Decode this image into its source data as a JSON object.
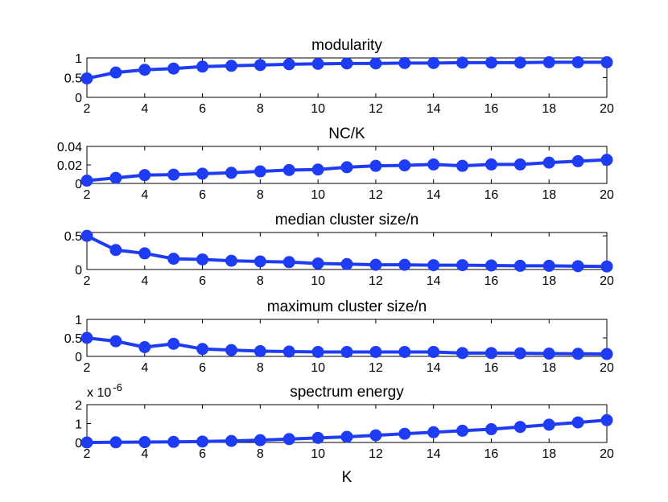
{
  "colors": {
    "series": "#1f3cf5",
    "axes": "#000000",
    "background": "#ffffff"
  },
  "chart_data": [
    {
      "type": "line",
      "title": "modularity",
      "xlabel": "",
      "ylabel": "",
      "x": [
        2,
        3,
        4,
        5,
        6,
        7,
        8,
        9,
        10,
        11,
        12,
        13,
        14,
        15,
        16,
        17,
        18,
        19,
        20
      ],
      "values": [
        0.48,
        0.63,
        0.7,
        0.73,
        0.78,
        0.8,
        0.82,
        0.84,
        0.85,
        0.86,
        0.86,
        0.87,
        0.87,
        0.88,
        0.88,
        0.88,
        0.89,
        0.89,
        0.89
      ],
      "xlim": [
        2,
        20
      ],
      "ylim": [
        0,
        1
      ],
      "xticks": [
        "2",
        "4",
        "6",
        "8",
        "10",
        "12",
        "14",
        "16",
        "18",
        "20"
      ],
      "yticks": [
        "0",
        "0.5",
        "1"
      ],
      "grid": false
    },
    {
      "type": "line",
      "title": "NC/K",
      "xlabel": "",
      "ylabel": "",
      "x": [
        2,
        3,
        4,
        5,
        6,
        7,
        8,
        9,
        10,
        11,
        12,
        13,
        14,
        15,
        16,
        17,
        18,
        19,
        20
      ],
      "values": [
        0.003,
        0.006,
        0.009,
        0.0095,
        0.0105,
        0.0115,
        0.013,
        0.0145,
        0.015,
        0.0175,
        0.019,
        0.0195,
        0.0205,
        0.019,
        0.0205,
        0.0205,
        0.0225,
        0.024,
        0.0255
      ],
      "xlim": [
        2,
        20
      ],
      "ylim": [
        0,
        0.04
      ],
      "xticks": [
        "2",
        "4",
        "6",
        "8",
        "10",
        "12",
        "14",
        "16",
        "18",
        "20"
      ],
      "yticks": [
        "0",
        "0.02",
        "0.04"
      ],
      "grid": false
    },
    {
      "type": "line",
      "title": "median cluster size/n",
      "xlabel": "",
      "ylabel": "",
      "x": [
        2,
        3,
        4,
        5,
        6,
        7,
        8,
        9,
        10,
        11,
        12,
        13,
        14,
        15,
        16,
        17,
        18,
        19,
        20
      ],
      "values": [
        0.5,
        0.29,
        0.24,
        0.16,
        0.15,
        0.13,
        0.12,
        0.11,
        0.09,
        0.08,
        0.07,
        0.07,
        0.065,
        0.065,
        0.06,
        0.055,
        0.055,
        0.05,
        0.045
      ],
      "xlim": [
        2,
        20
      ],
      "ylim": [
        0,
        0.55
      ],
      "xticks": [
        "2",
        "4",
        "6",
        "8",
        "10",
        "12",
        "14",
        "16",
        "18",
        "20"
      ],
      "yticks": [
        "0",
        "0.5"
      ],
      "grid": false
    },
    {
      "type": "line",
      "title": "maximum cluster size/n",
      "xlabel": "",
      "ylabel": "",
      "x": [
        2,
        3,
        4,
        5,
        6,
        7,
        8,
        9,
        10,
        11,
        12,
        13,
        14,
        15,
        16,
        17,
        18,
        19,
        20
      ],
      "values": [
        0.5,
        0.41,
        0.25,
        0.34,
        0.2,
        0.17,
        0.14,
        0.13,
        0.12,
        0.12,
        0.12,
        0.12,
        0.12,
        0.09,
        0.09,
        0.085,
        0.075,
        0.07,
        0.065
      ],
      "xlim": [
        2,
        20
      ],
      "ylim": [
        0,
        1
      ],
      "xticks": [
        "2",
        "4",
        "6",
        "8",
        "10",
        "12",
        "14",
        "16",
        "18",
        "20"
      ],
      "yticks": [
        "0",
        "0.5",
        "1"
      ],
      "grid": false
    },
    {
      "type": "line",
      "title": "spectrum energy",
      "xlabel": "K",
      "ylabel": "",
      "y_exponent_label": "x 10",
      "y_exponent_power": "-6",
      "x": [
        2,
        3,
        4,
        5,
        6,
        7,
        8,
        9,
        10,
        11,
        12,
        13,
        14,
        15,
        16,
        17,
        18,
        19,
        20
      ],
      "values": [
        0.0,
        0.01,
        0.02,
        0.03,
        0.05,
        0.08,
        0.12,
        0.18,
        0.24,
        0.3,
        0.38,
        0.46,
        0.54,
        0.62,
        0.7,
        0.82,
        0.94,
        1.06,
        1.18
      ],
      "xlim": [
        2,
        20
      ],
      "ylim": [
        0,
        2
      ],
      "xticks": [
        "2",
        "4",
        "6",
        "8",
        "10",
        "12",
        "14",
        "16",
        "18",
        "20"
      ],
      "yticks": [
        "0",
        "1",
        "2"
      ],
      "grid": false
    }
  ]
}
